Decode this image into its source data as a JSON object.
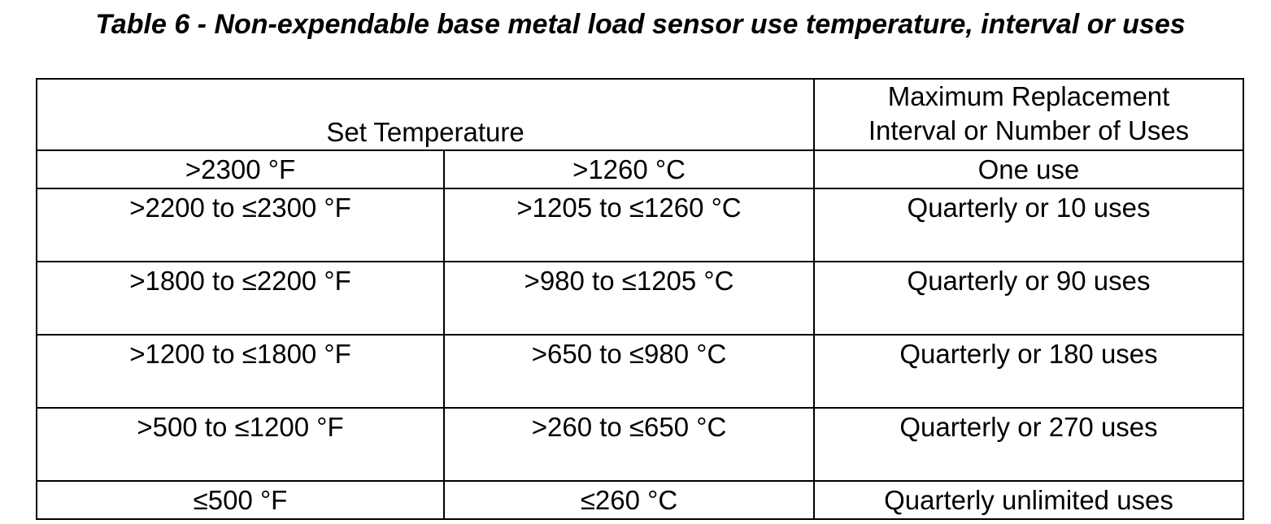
{
  "title": "Table 6 - Non-expendable base metal load sensor use temperature, interval or uses",
  "table": {
    "header": [
      "Set Temperature",
      "Maximum Replacement\nInterval or Number of Uses"
    ],
    "rows": [
      [
        ">2300 °F",
        ">1260 °C",
        "One use"
      ],
      [
        ">2200 to ≤2300 °F",
        ">1205 to ≤1260 °C",
        "Quarterly or 10 uses"
      ],
      [
        ">1800 to ≤2200 °F",
        ">980 to ≤1205 °C",
        "Quarterly or 90 uses"
      ],
      [
        ">1200 to ≤1800 °F",
        ">650 to ≤980 °C",
        "Quarterly or 180 uses"
      ],
      [
        ">500 to ≤1200 °F",
        ">260 to ≤650 °C",
        "Quarterly or 270 uses"
      ],
      [
        "≤500 °F",
        "≤260 °C",
        "Quarterly unlimited uses"
      ]
    ]
  }
}
